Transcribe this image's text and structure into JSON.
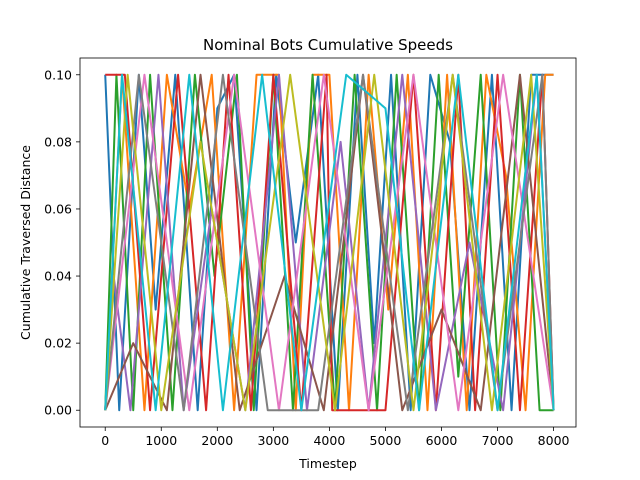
{
  "chart_data": {
    "type": "line",
    "title": "Nominal Bots Cumulative Speeds",
    "xlabel": "Timestep",
    "ylabel": "Cumulative Traversed Distance",
    "xlim": [
      -450,
      8400
    ],
    "ylim": [
      -0.005,
      0.105
    ],
    "xticks": [
      0,
      1000,
      2000,
      3000,
      4000,
      5000,
      6000,
      7000,
      8000
    ],
    "xtick_labels": [
      "0",
      "1000",
      "2000",
      "3000",
      "4000",
      "5000",
      "6000",
      "7000",
      "8000"
    ],
    "yticks": [
      0.0,
      0.02,
      0.04,
      0.06,
      0.08,
      0.1
    ],
    "ytick_labels": [
      "0.00",
      "0.02",
      "0.04",
      "0.06",
      "0.08",
      "0.10"
    ],
    "grid": false,
    "legend": "none",
    "series": [
      {
        "color": "#1f77b4",
        "x": [
          0,
          250,
          600,
          900,
          1250,
          1650,
          2000,
          2300,
          2700,
          3050,
          3400,
          3800,
          4150,
          4500,
          4800,
          5100,
          5450,
          5800,
          6150,
          6500,
          6900,
          7250,
          7600,
          8000
        ],
        "values": [
          0.1,
          0.0,
          0.1,
          0.03,
          0.1,
          0.0,
          0.09,
          0.1,
          0.0,
          0.1,
          0.05,
          0.1,
          0.0,
          0.1,
          0.02,
          0.1,
          0.0,
          0.1,
          0.08,
          0.0,
          0.1,
          0.0,
          0.1,
          0.1
        ]
      },
      {
        "color": "#ff7f0e",
        "x": [
          0,
          300,
          700,
          1100,
          1500,
          1900,
          2300,
          2700,
          3100,
          3400,
          3700,
          4000,
          4350,
          4700,
          5050,
          5400,
          5750,
          6100,
          6450,
          6800,
          7150,
          7500,
          7850,
          8000
        ],
        "values": [
          0.0,
          0.1,
          0.0,
          0.1,
          0.06,
          0.1,
          0.0,
          0.1,
          0.1,
          0.0,
          0.1,
          0.1,
          0.0,
          0.1,
          0.03,
          0.1,
          0.0,
          0.1,
          0.0,
          0.1,
          0.07,
          0.0,
          0.1,
          0.1
        ]
      },
      {
        "color": "#2ca02c",
        "x": [
          0,
          200,
          500,
          800,
          1200,
          1600,
          1950,
          2350,
          2650,
          3000,
          3350,
          3700,
          4100,
          4450,
          4850,
          5200,
          5600,
          5950,
          6300,
          6700,
          7050,
          7400,
          7750,
          8000
        ],
        "values": [
          0.0,
          0.1,
          0.0,
          0.1,
          0.0,
          0.1,
          0.04,
          0.1,
          0.0,
          0.1,
          0.0,
          0.1,
          0.0,
          0.1,
          0.0,
          0.1,
          0.0,
          0.1,
          0.01,
          0.1,
          0.0,
          0.1,
          0.0,
          0.0
        ]
      },
      {
        "color": "#d62728",
        "x": [
          0,
          350,
          800,
          1300,
          1800,
          2200,
          2600,
          3000,
          3500,
          3950,
          4050,
          5000,
          5500,
          5900,
          6300,
          6600,
          7000,
          7400,
          7800,
          8000
        ],
        "values": [
          0.1,
          0.1,
          0.0,
          0.1,
          0.0,
          0.1,
          0.0,
          0.1,
          0.0,
          0.1,
          0.0,
          0.0,
          0.1,
          0.0,
          0.1,
          0.0,
          0.1,
          0.0,
          0.1,
          0.0
        ]
      },
      {
        "color": "#9467bd",
        "x": [
          0,
          150,
          450,
          950,
          1400,
          1900,
          2500,
          3100,
          3600,
          4200,
          4700,
          5300,
          5900,
          6500,
          7100,
          7700,
          8000
        ],
        "values": [
          0.0,
          0.04,
          0.0,
          0.1,
          0.0,
          0.06,
          0.0,
          0.1,
          0.0,
          0.08,
          0.0,
          0.1,
          0.0,
          0.05,
          0.0,
          0.1,
          0.0
        ]
      },
      {
        "color": "#8c564b",
        "x": [
          0,
          500,
          1100,
          1700,
          2400,
          3200,
          3900,
          4600,
          5300,
          6000,
          6700,
          7400,
          8000
        ],
        "values": [
          0.0,
          0.02,
          0.0,
          0.1,
          0.0,
          0.04,
          0.0,
          0.1,
          0.0,
          0.03,
          0.0,
          0.1,
          0.0
        ]
      },
      {
        "color": "#e377c2",
        "x": [
          0,
          700,
          1500,
          2300,
          3100,
          3900,
          4700,
          5500,
          6300,
          7100,
          8000
        ],
        "values": [
          0.0,
          0.1,
          0.0,
          0.1,
          0.0,
          0.1,
          0.0,
          0.1,
          0.0,
          0.1,
          0.0
        ]
      },
      {
        "color": "#7f7f7f",
        "x": [
          0,
          600,
          1400,
          2100,
          2900,
          3800,
          4600,
          5400,
          6200,
          7000,
          7800,
          8000
        ],
        "values": [
          0.0,
          0.1,
          0.0,
          0.1,
          0.0,
          0.0,
          0.1,
          0.0,
          0.1,
          0.0,
          0.1,
          0.0
        ]
      },
      {
        "color": "#bcbd22",
        "x": [
          0,
          400,
          1000,
          1700,
          2500,
          3300,
          4100,
          4800,
          5500,
          6200,
          6900,
          7600,
          8000
        ],
        "values": [
          0.0,
          0.1,
          0.0,
          0.08,
          0.0,
          0.1,
          0.0,
          0.1,
          0.0,
          0.1,
          0.0,
          0.1,
          0.0
        ]
      },
      {
        "color": "#17becf",
        "x": [
          0,
          300,
          900,
          1500,
          2100,
          2800,
          3500,
          4300,
          5000,
          5600,
          6300,
          7000,
          7700,
          8000
        ],
        "values": [
          0.0,
          0.1,
          0.0,
          0.1,
          0.0,
          0.1,
          0.0,
          0.1,
          0.09,
          0.0,
          0.1,
          0.0,
          0.1,
          0.0
        ]
      }
    ]
  }
}
